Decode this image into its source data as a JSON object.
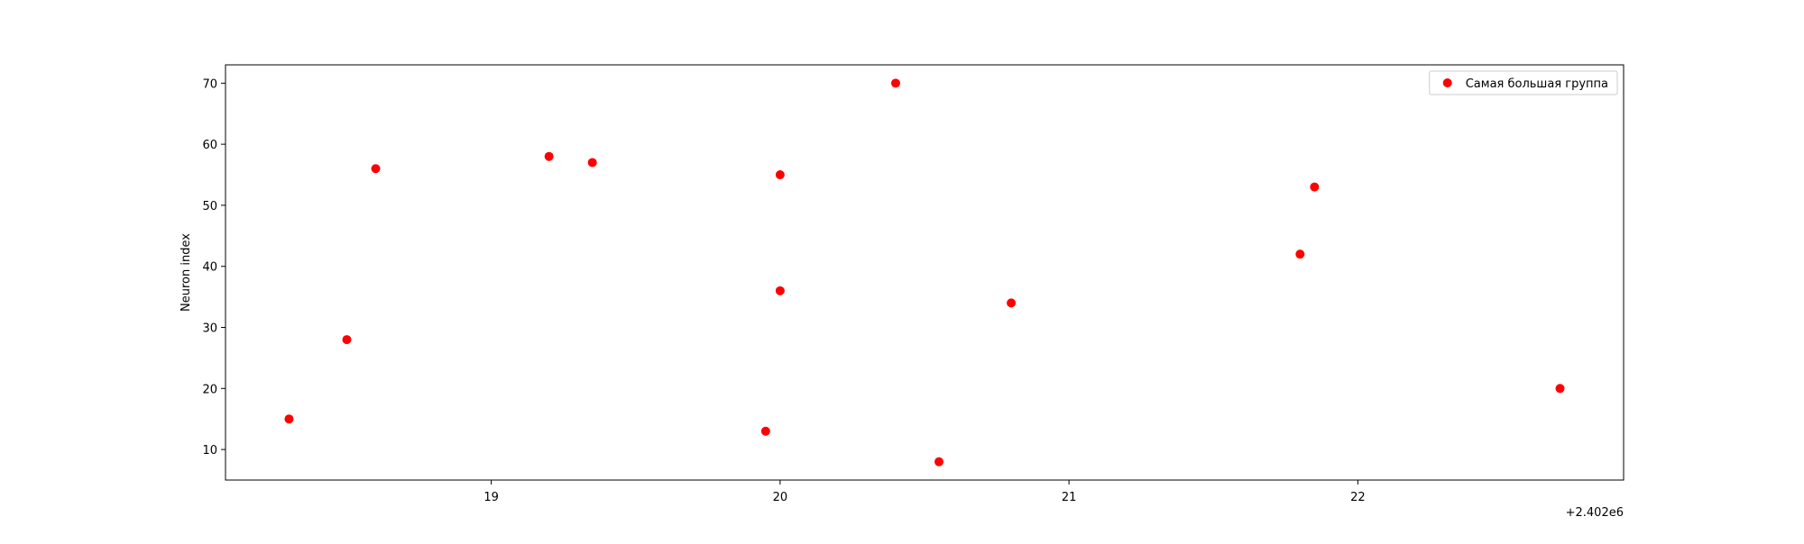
{
  "chart_data": {
    "type": "scatter",
    "title": "",
    "xlabel": "",
    "ylabel": "Neuron index",
    "x_offset_label": "+2.402e6",
    "x_tick_labels": [
      "19",
      "20",
      "21",
      "22"
    ],
    "y_tick_labels": [
      "10",
      "20",
      "30",
      "40",
      "50",
      "60",
      "70"
    ],
    "xlim": [
      18.08,
      22.92
    ],
    "ylim": [
      5,
      73
    ],
    "grid": false,
    "legend_position": "top-right",
    "series": [
      {
        "name": "Самая большая группа",
        "color": "#ff0000",
        "marker": "circle",
        "points": [
          {
            "x": 18.3,
            "y": 15
          },
          {
            "x": 18.5,
            "y": 28
          },
          {
            "x": 18.6,
            "y": 56
          },
          {
            "x": 19.2,
            "y": 58
          },
          {
            "x": 19.35,
            "y": 57
          },
          {
            "x": 19.95,
            "y": 13
          },
          {
            "x": 20.0,
            "y": 55
          },
          {
            "x": 20.0,
            "y": 36
          },
          {
            "x": 20.4,
            "y": 70
          },
          {
            "x": 20.55,
            "y": 8
          },
          {
            "x": 20.8,
            "y": 34
          },
          {
            "x": 21.8,
            "y": 42
          },
          {
            "x": 21.85,
            "y": 53
          },
          {
            "x": 22.7,
            "y": 20
          }
        ]
      }
    ]
  }
}
